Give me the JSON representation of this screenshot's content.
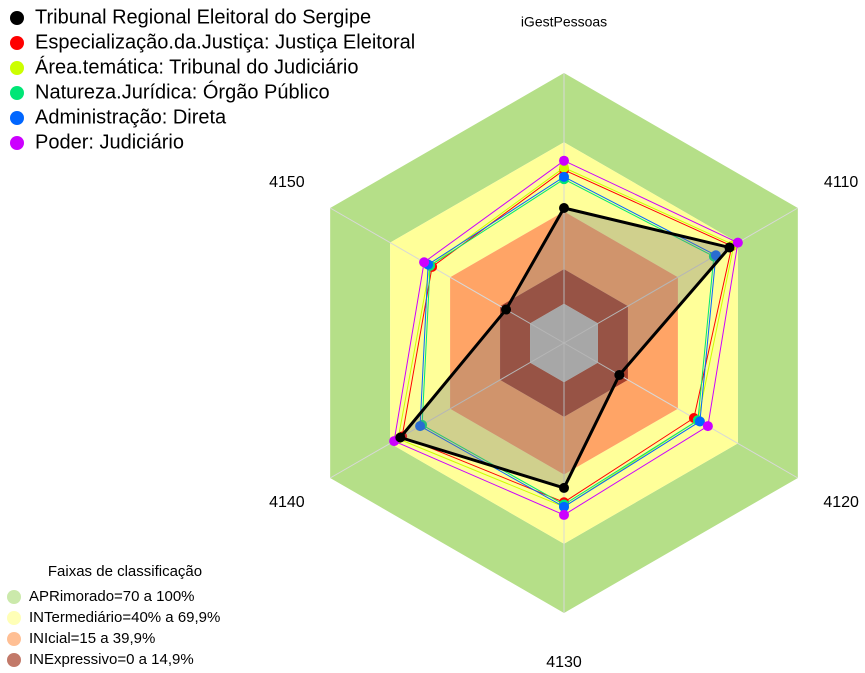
{
  "chart_data": {
    "type": "radar",
    "categories": [
      "iGestPessoas",
      "4110",
      "4120",
      "4130",
      "4140",
      "4150"
    ],
    "rlim": [
      -17,
      100
    ],
    "series": [
      {
        "name": "Tribunal Regional Eleitoral do Sergipe",
        "color": "#000000",
        "values": [
          41.5,
          65.8,
          10.7,
          45.8,
          64.9,
          12
        ]
      },
      {
        "name": "Especialização.da.Justiça: Justiça Eleitoral",
        "color": "#ff0000",
        "values": [
          58,
          67,
          48,
          52,
          64,
          49
        ]
      },
      {
        "name": "Área.temática: Tribunal do Judiciário",
        "color": "#ccff00",
        "values": [
          59,
          68,
          50,
          54,
          66,
          50
        ]
      },
      {
        "name": "Natureza.Jurídica: Órgão Público",
        "color": "#00e676",
        "values": [
          54,
          58,
          50,
          53,
          54,
          50
        ]
      },
      {
        "name": "Administração: Direta",
        "color": "#0066ff",
        "values": [
          55,
          59,
          51,
          54,
          55,
          51
        ]
      },
      {
        "name": "Poder: Judiciário",
        "color": "#cc00ff",
        "values": [
          62,
          70,
          55,
          57.5,
          68,
          53
        ]
      }
    ],
    "bands_title": "Faixas de classificação",
    "bands": [
      {
        "label": "APRimorado=70 a 100%",
        "from": 70,
        "to": 100,
        "color": "#b5df88"
      },
      {
        "label": "INTermediário=40% a 69,9%",
        "from": 40,
        "to": 70,
        "color": "#ffff99"
      },
      {
        "label": "INIcial=15 a 39,9%",
        "from": 15,
        "to": 40,
        "color": "#ffa466"
      },
      {
        "label": "INExpressivo=0 a 14,9%",
        "from": 0,
        "to": 15,
        "color": "#a8402a"
      }
    ]
  }
}
